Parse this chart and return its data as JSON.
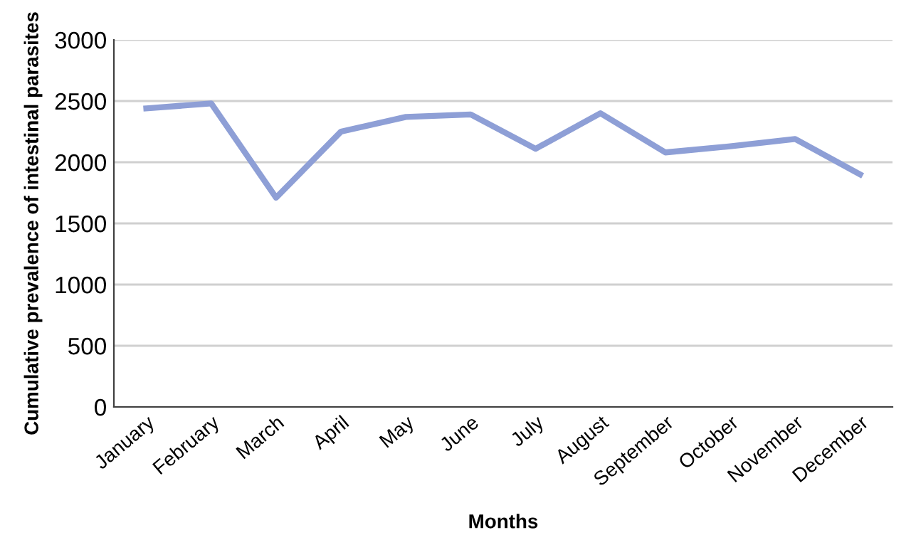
{
  "chart_data": {
    "type": "line",
    "xlabel": "Months",
    "ylabel": "Cumulative prevalence of intestinal parasites",
    "categories": [
      "January",
      "February",
      "March",
      "April",
      "May",
      "June",
      "July",
      "August",
      "September",
      "October",
      "November",
      "December"
    ],
    "series": [
      {
        "color": "#8e9fd6",
        "values": [
          2440,
          2480,
          1710,
          2250,
          2370,
          2390,
          2110,
          2400,
          2080,
          2130,
          2190,
          1900
        ]
      }
    ],
    "ylim": [
      0,
      3000
    ],
    "yticks": [
      0,
      500,
      1000,
      1500,
      2000,
      2500,
      3000
    ],
    "grid": "y",
    "marker": "none",
    "line_style": "solid",
    "legend": false
  }
}
